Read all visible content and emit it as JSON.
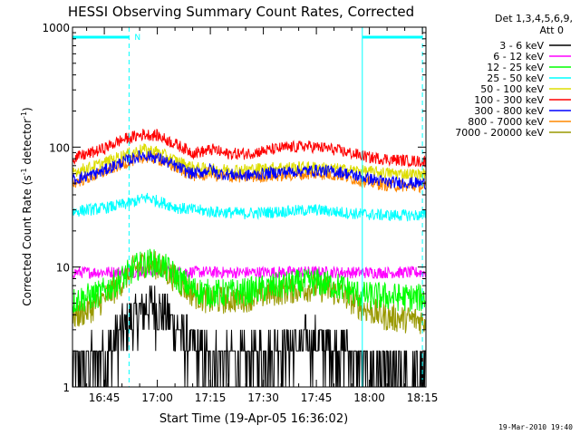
{
  "chart_data": {
    "type": "line",
    "title": "HESSI Observing Summary Count Rates, Corrected",
    "xlabel": "Start Time (19-Apr-05 16:36:02)",
    "ylabel_main": "Corrected Count Rate (s",
    "ylabel_sup1": "-1",
    "ylabel_mid": " detector",
    "ylabel_sup2": "-1",
    "ylabel_end": ")",
    "yscale": "log",
    "ylim": [
      1,
      1000
    ],
    "xlim_min": [
      36,
      136
    ],
    "x_ticks": [
      {
        "t": 45,
        "label": "16:45"
      },
      {
        "t": 60,
        "label": "17:00"
      },
      {
        "t": 75,
        "label": "17:15"
      },
      {
        "t": 90,
        "label": "17:30"
      },
      {
        "t": 105,
        "label": "17:45"
      },
      {
        "t": 120,
        "label": "18:00"
      },
      {
        "t": 135,
        "label": "18:15"
      }
    ],
    "y_ticks": [
      {
        "v": 1,
        "label": "1"
      },
      {
        "v": 10,
        "label": "10"
      },
      {
        "v": 100,
        "label": "100"
      },
      {
        "v": 1000,
        "label": "1000"
      }
    ],
    "night_markers": {
      "color": "#00ffff",
      "label_n": "N",
      "day_end": 52,
      "night_start": 118,
      "end": 135
    },
    "legend_header": [
      "Det 1,3,4,5,6,9,",
      "Att 0"
    ],
    "series": [
      {
        "name": "3 - 6 keV",
        "color": "#000000",
        "points": [
          [
            36,
            1.6
          ],
          [
            46,
            1.9
          ],
          [
            50,
            3.0
          ],
          [
            54,
            4.0
          ],
          [
            58,
            5.0
          ],
          [
            62,
            4.2
          ],
          [
            66,
            3.0
          ],
          [
            70,
            2.2
          ],
          [
            75,
            1.8
          ],
          [
            85,
            1.7
          ],
          [
            95,
            2.2
          ],
          [
            105,
            2.5
          ],
          [
            112,
            2.2
          ],
          [
            118,
            1.6
          ],
          [
            125,
            1.3
          ],
          [
            135,
            1.2
          ]
        ]
      },
      {
        "name": "6 - 12 keV",
        "color": "#ff00ff",
        "points": [
          [
            36,
            9
          ],
          [
            60,
            9.2
          ],
          [
            80,
            9
          ],
          [
            100,
            9.1
          ],
          [
            120,
            9
          ],
          [
            135,
            9
          ]
        ]
      },
      {
        "name": "12 - 25 keV",
        "color": "#00ff00",
        "points": [
          [
            36,
            5.2
          ],
          [
            44,
            6.0
          ],
          [
            50,
            8.0
          ],
          [
            54,
            10
          ],
          [
            58,
            11
          ],
          [
            62,
            10
          ],
          [
            66,
            8
          ],
          [
            70,
            6.5
          ],
          [
            75,
            6.0
          ],
          [
            85,
            6.2
          ],
          [
            95,
            7.0
          ],
          [
            105,
            7.5
          ],
          [
            112,
            6.8
          ],
          [
            118,
            5.8
          ],
          [
            135,
            5.5
          ]
        ]
      },
      {
        "name": "25 - 50 keV",
        "color": "#00ffff",
        "points": [
          [
            36,
            29
          ],
          [
            45,
            31
          ],
          [
            52,
            34
          ],
          [
            57,
            38
          ],
          [
            62,
            34
          ],
          [
            66,
            31
          ],
          [
            75,
            29
          ],
          [
            85,
            28
          ],
          [
            95,
            29
          ],
          [
            105,
            30
          ],
          [
            115,
            28
          ],
          [
            125,
            27
          ],
          [
            135,
            27
          ]
        ]
      },
      {
        "name": "50 - 100 keV",
        "color": "#dddd00",
        "points": [
          [
            36,
            62
          ],
          [
            44,
            72
          ],
          [
            50,
            85
          ],
          [
            56,
            96
          ],
          [
            60,
            92
          ],
          [
            64,
            80
          ],
          [
            70,
            68
          ],
          [
            75,
            65
          ],
          [
            85,
            65
          ],
          [
            95,
            68
          ],
          [
            105,
            68
          ],
          [
            115,
            64
          ],
          [
            125,
            61
          ],
          [
            135,
            59
          ]
        ]
      },
      {
        "name": "100 - 300 keV",
        "color": "#ff0000",
        "points": [
          [
            36,
            80
          ],
          [
            44,
            95
          ],
          [
            50,
            115
          ],
          [
            56,
            128
          ],
          [
            60,
            125
          ],
          [
            64,
            110
          ],
          [
            70,
            90
          ],
          [
            73,
            92
          ],
          [
            76,
            96
          ],
          [
            79,
            88
          ],
          [
            85,
            88
          ],
          [
            95,
            98
          ],
          [
            102,
            102
          ],
          [
            108,
            98
          ],
          [
            114,
            90
          ],
          [
            120,
            82
          ],
          [
            128,
            78
          ],
          [
            135,
            76
          ]
        ]
      },
      {
        "name": "300 - 800 keV",
        "color": "#0000ff",
        "points": [
          [
            36,
            53
          ],
          [
            44,
            62
          ],
          [
            50,
            75
          ],
          [
            56,
            86
          ],
          [
            60,
            82
          ],
          [
            64,
            72
          ],
          [
            70,
            60
          ],
          [
            73,
            62
          ],
          [
            75,
            66
          ],
          [
            77,
            60
          ],
          [
            85,
            58
          ],
          [
            95,
            62
          ],
          [
            105,
            64
          ],
          [
            112,
            62
          ],
          [
            118,
            56
          ],
          [
            125,
            51
          ],
          [
            135,
            50
          ]
        ]
      },
      {
        "name": "800 - 7000 keV",
        "color": "#ff8800",
        "points": [
          [
            36,
            50
          ],
          [
            44,
            60
          ],
          [
            50,
            72
          ],
          [
            56,
            82
          ],
          [
            60,
            80
          ],
          [
            64,
            70
          ],
          [
            70,
            58
          ],
          [
            73,
            58
          ],
          [
            75,
            62
          ],
          [
            77,
            57
          ],
          [
            85,
            56
          ],
          [
            95,
            58
          ],
          [
            105,
            60
          ],
          [
            112,
            58
          ],
          [
            118,
            52
          ],
          [
            125,
            48
          ],
          [
            135,
            47
          ]
        ]
      },
      {
        "name": "7000 - 20000 keV",
        "color": "#999900",
        "points": [
          [
            36,
            3.8
          ],
          [
            42,
            4.6
          ],
          [
            48,
            6.5
          ],
          [
            53,
            9.5
          ],
          [
            57,
            11
          ],
          [
            61,
            10
          ],
          [
            65,
            8
          ],
          [
            70,
            6.0
          ],
          [
            75,
            5.2
          ],
          [
            85,
            5.5
          ],
          [
            95,
            6.3
          ],
          [
            105,
            6.8
          ],
          [
            112,
            6.0
          ],
          [
            118,
            4.6
          ],
          [
            125,
            3.8
          ],
          [
            135,
            3.6
          ]
        ]
      }
    ]
  },
  "footer_timestamp": "19-Mar-2010 19:40"
}
